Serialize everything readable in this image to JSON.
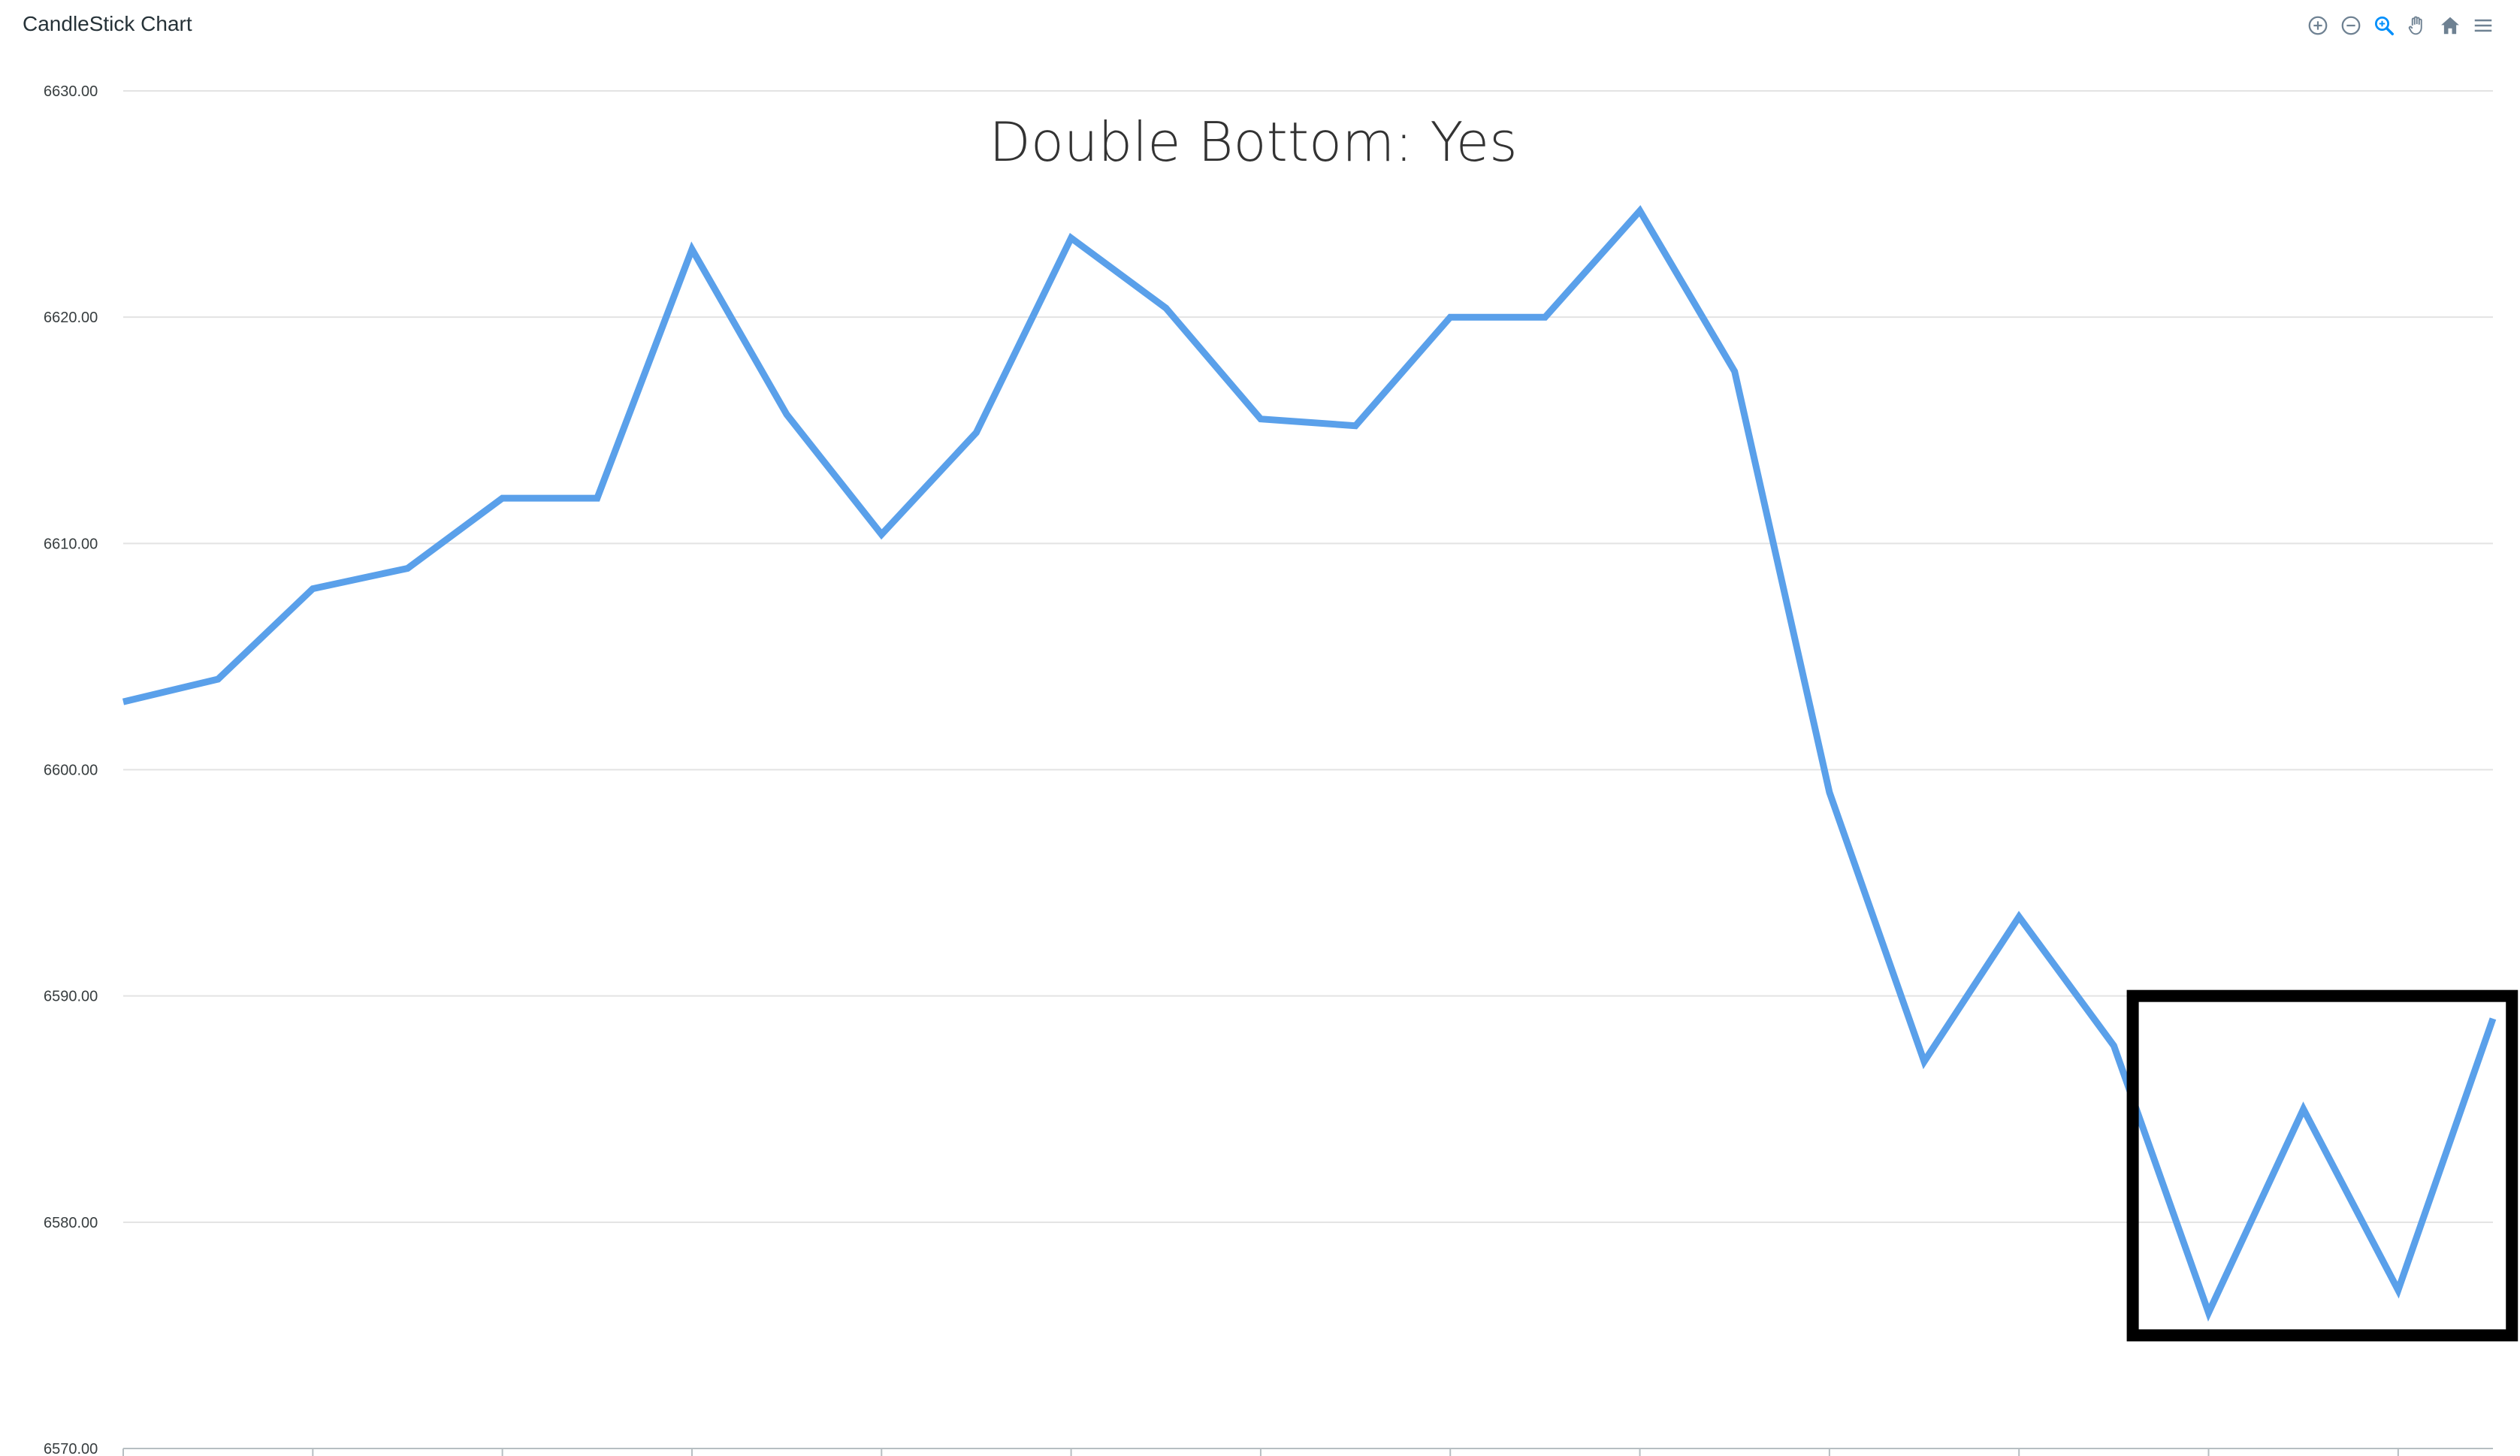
{
  "header": {
    "chart_name": "CandleStick Chart",
    "toolbar": [
      {
        "name": "zoom-in-icon",
        "tooltip": "Zoom In"
      },
      {
        "name": "zoom-out-icon",
        "tooltip": "Zoom Out"
      },
      {
        "name": "selection-zoom-icon",
        "tooltip": "Selection Zoom"
      },
      {
        "name": "pan-icon",
        "tooltip": "Panning"
      },
      {
        "name": "reset-zoom-icon",
        "tooltip": "Reset Zoom"
      },
      {
        "name": "menu-icon",
        "tooltip": "Menu"
      }
    ]
  },
  "colors": {
    "line": "#5AA0EA",
    "grid": "#E3E3E3",
    "axis": "#B6BEC2",
    "highlight_box": "#000000",
    "title": "#333333",
    "toolbar_icon": "#6E8192",
    "toolbar_active": "#008FFB"
  },
  "chart_data": {
    "type": "line",
    "title": "Double Bottom: Yes",
    "xlabel": "",
    "ylabel": "",
    "ylim": [
      6570,
      6630
    ],
    "yticks": [
      "6570.00",
      "6580.00",
      "6590.00",
      "6600.00",
      "6610.00",
      "6620.00",
      "6630.00"
    ],
    "y_tick_values": [
      6570,
      6580,
      6590,
      6600,
      6610,
      6620,
      6630
    ],
    "x": [
      0,
      1,
      2,
      3,
      4,
      5,
      6,
      7,
      8,
      9,
      10,
      11,
      12,
      13,
      14,
      15,
      16,
      17,
      18,
      19,
      20,
      21,
      22,
      23,
      24,
      25
    ],
    "xlim": [
      0,
      25
    ],
    "x_tick_values": [
      0,
      2,
      4,
      6,
      8,
      10,
      12,
      14,
      16,
      18,
      20,
      22,
      24
    ],
    "series": [
      {
        "values": [
          6603.0,
          6604.0,
          6608.0,
          6608.9,
          6612.0,
          6612.0,
          6623.0,
          6615.7,
          6610.4,
          6614.9,
          6623.5,
          6620.4,
          6615.5,
          6615.2,
          6620.0,
          6620.0,
          6624.7,
          6617.6,
          6599.0,
          6587.1,
          6593.5,
          6587.8,
          6576.0,
          6585.0,
          6577.0,
          6589.0
        ]
      }
    ],
    "highlight": {
      "x_range": [
        21.2,
        25.2
      ],
      "y_range": [
        6575.0,
        6590.0
      ]
    },
    "grid": true,
    "legend": "none"
  }
}
